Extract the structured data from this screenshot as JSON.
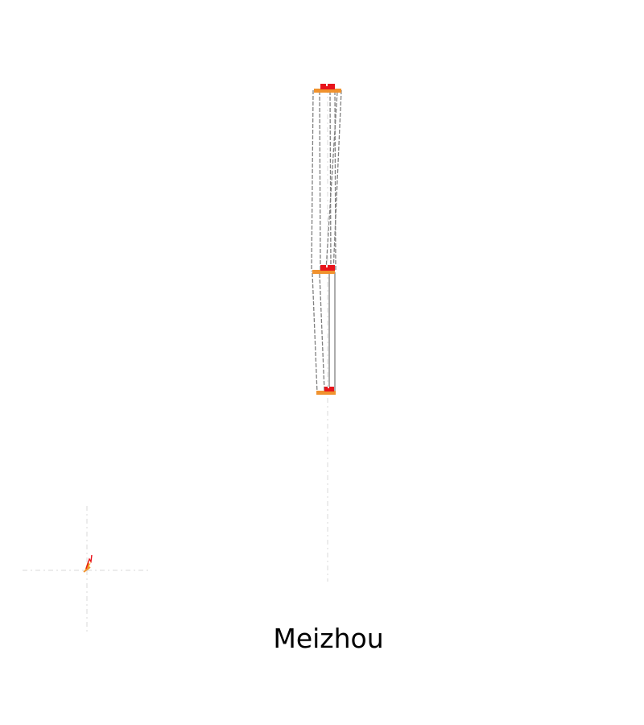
{
  "title": "Meizhou",
  "colors": {
    "background": "#ffffff",
    "guide": "#d8d8d8",
    "link": "#808080",
    "station_fill": "#f0922e",
    "station_top": "#e8141b",
    "label_text": "#000000"
  },
  "stations": [
    {
      "id": "top-station"
    },
    {
      "id": "middle-station"
    },
    {
      "id": "bottom-station"
    }
  ],
  "compass_marker": {
    "icon": "flame-icon"
  }
}
